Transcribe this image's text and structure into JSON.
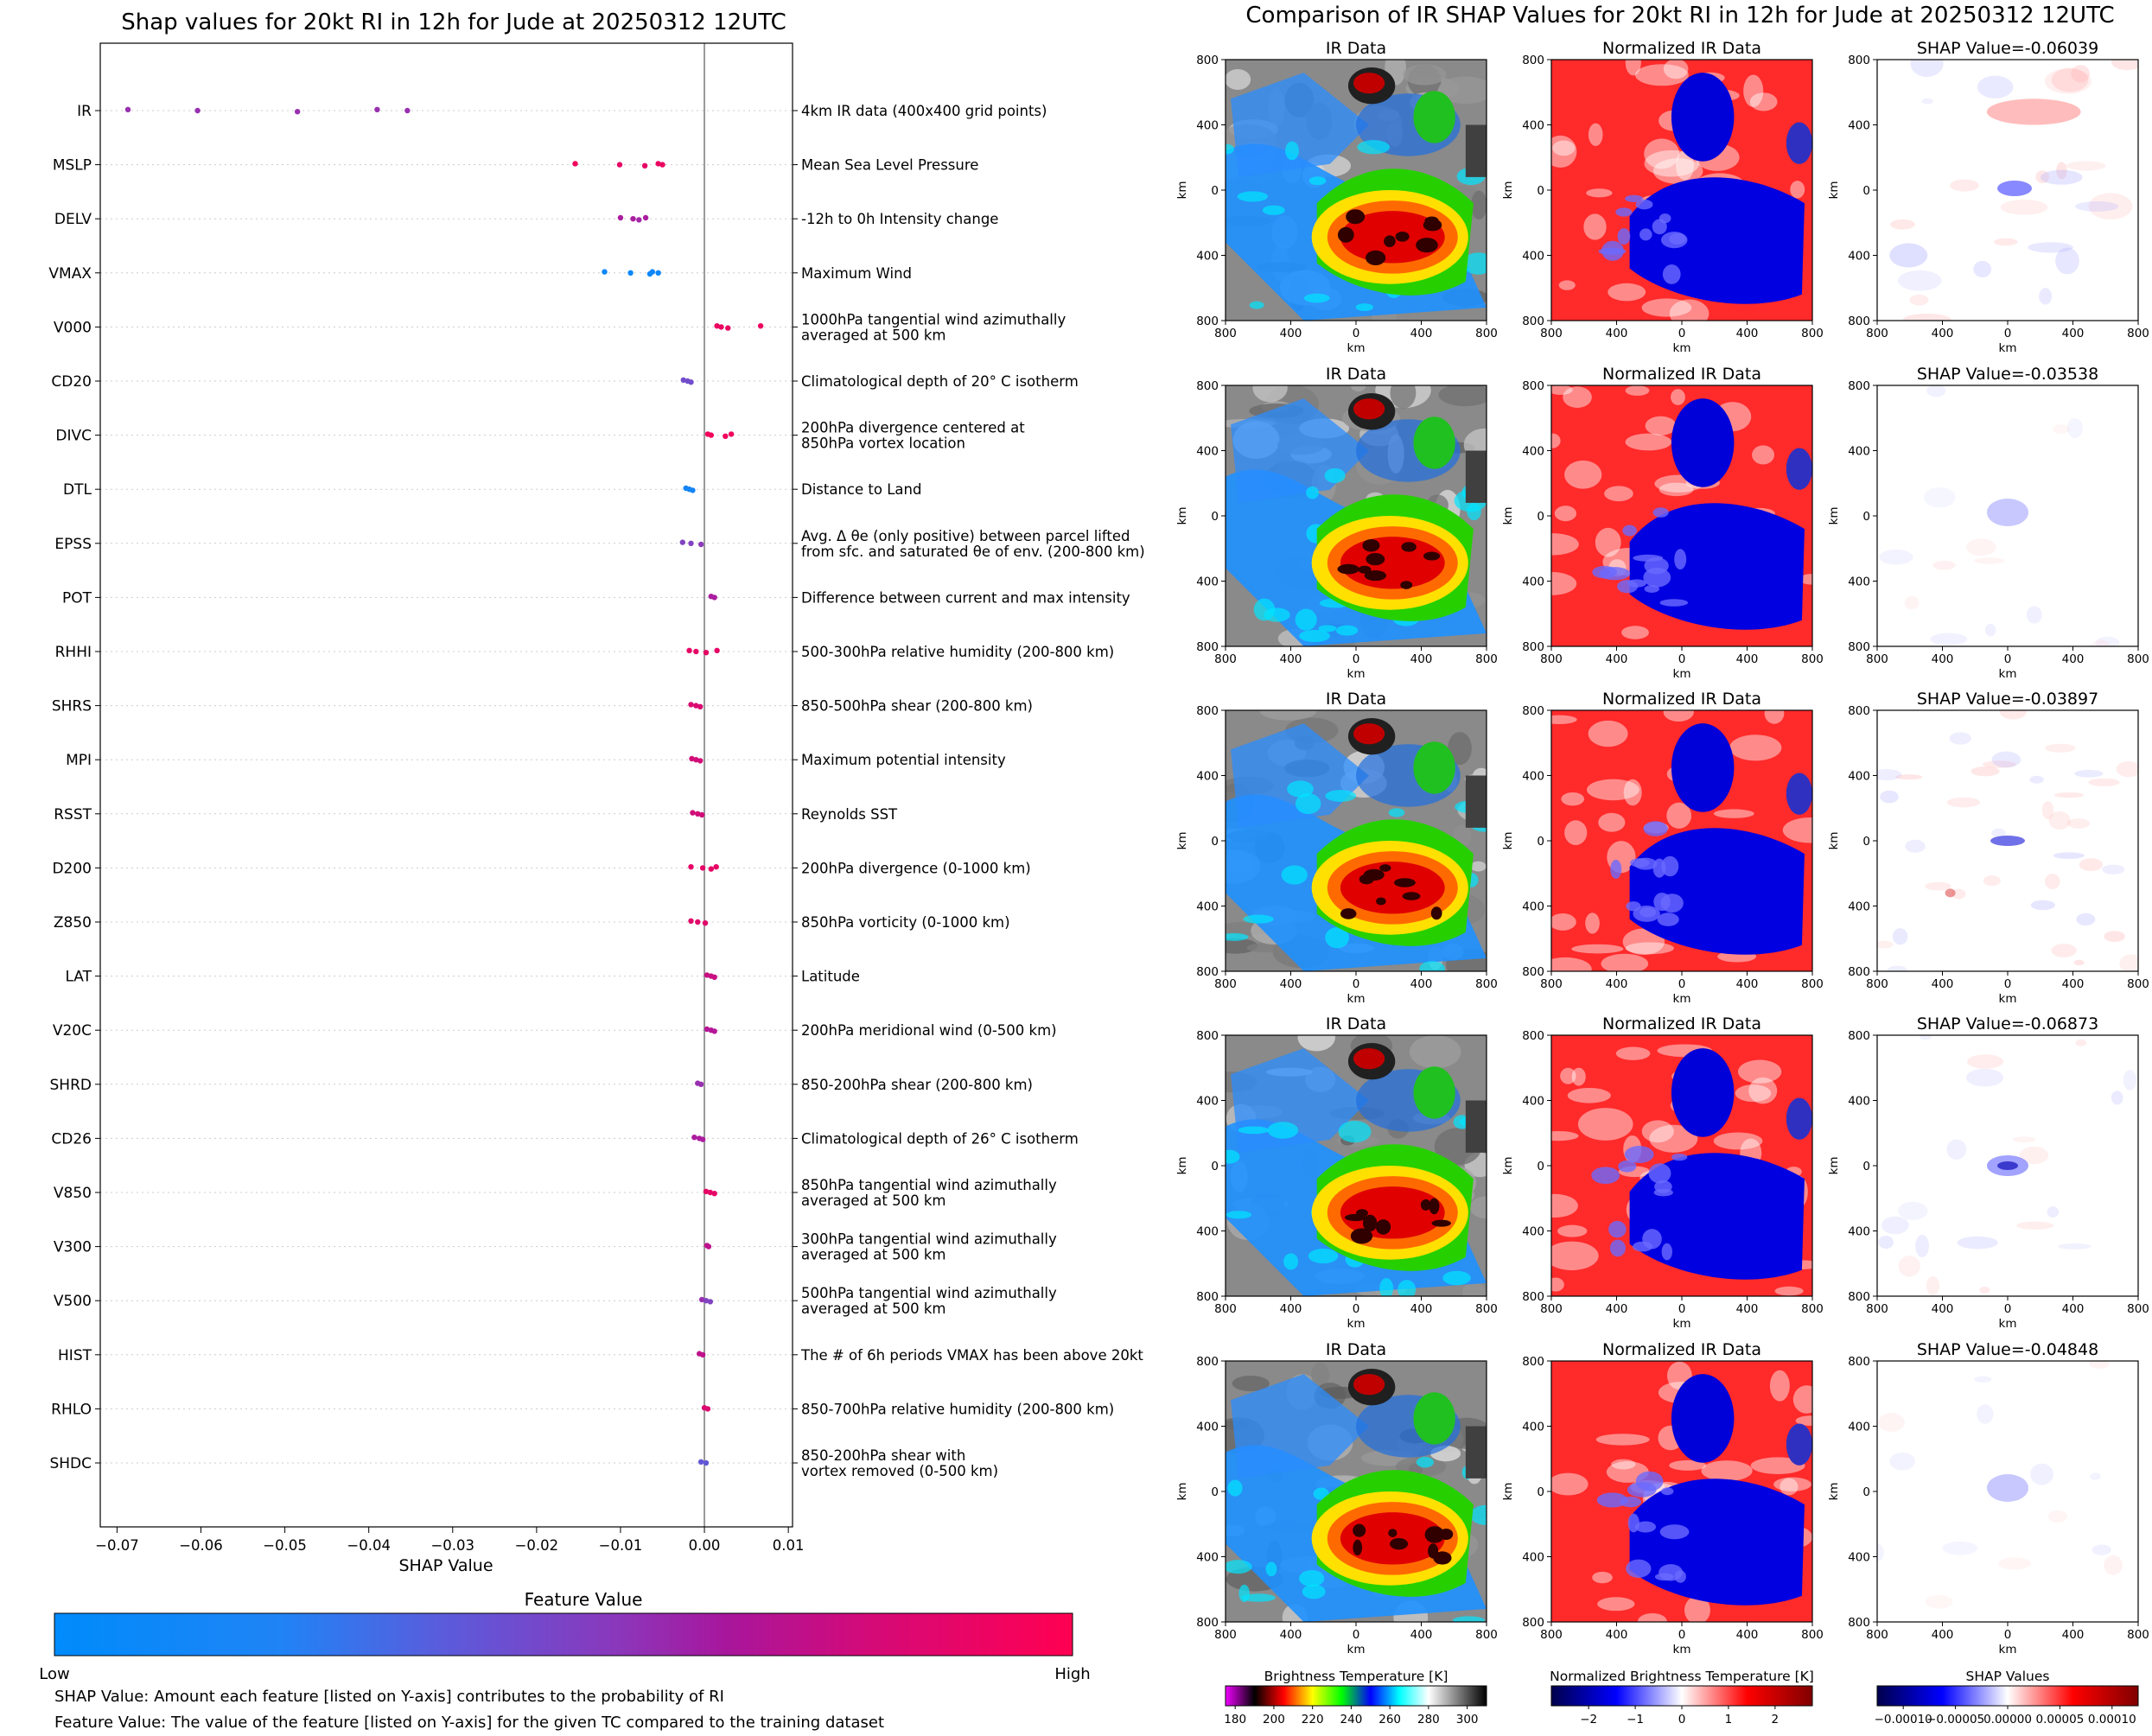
{
  "chart_data": [
    {
      "type": "scatter",
      "title": "Shap values for 20kt RI in 12h for Jude at 20250312 12UTC",
      "xlabel": "SHAP Value",
      "ylabel": "",
      "xlim": [
        -0.072,
        0.0105
      ],
      "x_ticks": [
        "−0.07",
        "−0.06",
        "−0.05",
        "−0.04",
        "−0.03",
        "−0.02",
        "−0.01",
        "0.00",
        "0.01"
      ],
      "x_tick_values": [
        -0.07,
        -0.06,
        -0.05,
        -0.04,
        -0.03,
        -0.02,
        -0.01,
        0.0,
        0.01
      ],
      "grid": "horizontal dotted",
      "features": [
        {
          "name": "IR",
          "description": "4km IR data (400x400 grid points)",
          "points": [
            [
              -0.0687,
              0.5
            ],
            [
              -0.0604,
              0.5
            ],
            [
              -0.0485,
              0.5
            ],
            [
              -0.039,
              0.5
            ],
            [
              -0.0354,
              0.5
            ]
          ]
        },
        {
          "name": "MSLP",
          "description": "Mean Sea Level Pressure",
          "points": [
            [
              -0.0154,
              0.95
            ],
            [
              -0.0101,
              0.9
            ],
            [
              -0.0071,
              0.9
            ],
            [
              -0.0055,
              0.92
            ],
            [
              -0.005,
              0.92
            ]
          ]
        },
        {
          "name": "DELV",
          "description": "-12h to 0h Intensity change",
          "points": [
            [
              -0.01,
              0.6
            ],
            [
              -0.0085,
              0.6
            ],
            [
              -0.0078,
              0.55
            ],
            [
              -0.007,
              0.6
            ]
          ]
        },
        {
          "name": "VMAX",
          "description": "Maximum Wind",
          "points": [
            [
              -0.0119,
              0.05
            ],
            [
              -0.0088,
              0.05
            ],
            [
              -0.0065,
              0.05
            ],
            [
              -0.0062,
              0.05
            ],
            [
              -0.0055,
              0.05
            ]
          ]
        },
        {
          "name": "V000",
          "description": "1000hPa tangential wind azimuthally\naveraged at 500 km",
          "points": [
            [
              0.0015,
              0.92
            ],
            [
              0.002,
              0.92
            ],
            [
              0.0028,
              0.92
            ],
            [
              0.0067,
              0.92
            ]
          ]
        },
        {
          "name": "CD20",
          "description": "Climatological depth of 20° C isotherm",
          "points": [
            [
              -0.0025,
              0.35
            ],
            [
              -0.002,
              0.35
            ],
            [
              -0.0016,
              0.35
            ]
          ]
        },
        {
          "name": "DIVC",
          "description": "200hPa divergence centered at\n850hPa vortex location",
          "points": [
            [
              0.0004,
              0.95
            ],
            [
              0.0008,
              0.95
            ],
            [
              0.0025,
              0.95
            ],
            [
              0.0032,
              0.95
            ]
          ]
        },
        {
          "name": "DTL",
          "description": "Distance to Land",
          "points": [
            [
              -0.0022,
              0.08
            ],
            [
              -0.0018,
              0.08
            ],
            [
              -0.0014,
              0.08
            ]
          ]
        },
        {
          "name": "EPSS",
          "description": "Avg. Δ θe (only positive) between parcel lifted\nfrom sfc. and saturated θe of env. (200-800 km)",
          "points": [
            [
              -0.0026,
              0.4
            ],
            [
              -0.0016,
              0.4
            ],
            [
              -0.0004,
              0.45
            ]
          ]
        },
        {
          "name": "POT",
          "description": "Difference between current and max intensity",
          "points": [
            [
              0.0008,
              0.6
            ],
            [
              0.0012,
              0.6
            ]
          ]
        },
        {
          "name": "RHHI",
          "description": "500-300hPa relative humidity (200-800 km)",
          "points": [
            [
              -0.0018,
              0.9
            ],
            [
              -0.001,
              0.9
            ],
            [
              0.0002,
              0.9
            ],
            [
              0.0015,
              0.9
            ]
          ]
        },
        {
          "name": "SHRS",
          "description": "850-500hPa shear (200-800 km)",
          "points": [
            [
              -0.0016,
              0.85
            ],
            [
              -0.001,
              0.85
            ],
            [
              -0.0005,
              0.85
            ]
          ]
        },
        {
          "name": "MPI",
          "description": "Maximum potential intensity",
          "points": [
            [
              -0.0015,
              0.8
            ],
            [
              -0.001,
              0.8
            ],
            [
              -0.0005,
              0.8
            ]
          ]
        },
        {
          "name": "RSST",
          "description": "Reynolds SST",
          "points": [
            [
              -0.0014,
              0.8
            ],
            [
              -0.0008,
              0.8
            ],
            [
              -0.0003,
              0.8
            ]
          ]
        },
        {
          "name": "D200",
          "description": "200hPa divergence (0-1000 km)",
          "points": [
            [
              -0.0016,
              0.9
            ],
            [
              -0.0002,
              0.9
            ],
            [
              0.0008,
              0.9
            ],
            [
              0.0014,
              0.9
            ]
          ]
        },
        {
          "name": "Z850",
          "description": "850hPa vorticity (0-1000 km)",
          "points": [
            [
              -0.0016,
              0.88
            ],
            [
              -0.0008,
              0.88
            ],
            [
              0.0001,
              0.88
            ]
          ]
        },
        {
          "name": "LAT",
          "description": "Latitude",
          "points": [
            [
              0.0003,
              0.75
            ],
            [
              0.0008,
              0.75
            ],
            [
              0.0012,
              0.75
            ]
          ]
        },
        {
          "name": "V20C",
          "description": "200hPa meridional wind (0-500 km)",
          "points": [
            [
              0.0003,
              0.65
            ],
            [
              0.0008,
              0.65
            ],
            [
              0.0012,
              0.65
            ]
          ]
        },
        {
          "name": "SHRD",
          "description": "850-200hPa shear (200-800 km)",
          "points": [
            [
              -0.0008,
              0.5
            ],
            [
              -0.0004,
              0.5
            ]
          ]
        },
        {
          "name": "CD26",
          "description": "Climatological depth of 26° C isotherm",
          "points": [
            [
              -0.0012,
              0.6
            ],
            [
              -0.0006,
              0.6
            ],
            [
              -0.0002,
              0.6
            ]
          ]
        },
        {
          "name": "V850",
          "description": "850hPa tangential wind azimuthally\naveraged at 500 km",
          "points": [
            [
              0.0002,
              0.9
            ],
            [
              0.0007,
              0.9
            ],
            [
              0.0012,
              0.9
            ]
          ]
        },
        {
          "name": "V300",
          "description": "300hPa tangential wind azimuthally\naveraged at 500 km",
          "points": [
            [
              0.0003,
              0.7
            ],
            [
              0.0005,
              0.7
            ]
          ]
        },
        {
          "name": "V500",
          "description": "500hPa tangential wind azimuthally\naveraged at 500 km",
          "points": [
            [
              -0.0003,
              0.5
            ],
            [
              0.0002,
              0.4
            ],
            [
              0.0007,
              0.4
            ]
          ]
        },
        {
          "name": "HIST",
          "description": "The # of 6h periods VMAX has been above 20kt",
          "points": [
            [
              -0.0006,
              0.7
            ],
            [
              -0.0002,
              0.7
            ]
          ]
        },
        {
          "name": "RHLO",
          "description": "850-700hPa relative humidity (200-800 km)",
          "points": [
            [
              0.0,
              0.85
            ],
            [
              0.0004,
              0.85
            ]
          ]
        },
        {
          "name": "SHDC",
          "description": "850-200hPa shear with\nvortex removed (0-500 km)",
          "points": [
            [
              -0.0004,
              0.3
            ],
            [
              0.0002,
              0.3
            ]
          ]
        }
      ],
      "colorbar": {
        "title": "Feature Value",
        "low_label": "Low",
        "high_label": "High",
        "colors": [
          "#008bfb",
          "#2080f5",
          "#5060e0",
          "#7a48c6",
          "#9830ae",
          "#b0189c",
          "#c81082",
          "#e0086a",
          "#ff0052"
        ]
      }
    },
    {
      "type": "heatmap",
      "title": "Comparison of IR SHAP Values for 20kt RI in 12h for Jude at 20250312 12UTC",
      "axis_label": "km",
      "ticks": [
        "800",
        "400",
        "0",
        "400",
        "800"
      ],
      "column_titles": [
        "IR Data",
        "Normalized IR Data"
      ],
      "rows": [
        {
          "shap_title": "SHAP Value=-0.06039",
          "pattern": "warm-cold-dipole"
        },
        {
          "shap_title": "SHAP Value=-0.03538",
          "pattern": "center"
        },
        {
          "shap_title": "SHAP Value=-0.03897",
          "pattern": "scattered"
        },
        {
          "shap_title": "SHAP Value=-0.06873",
          "pattern": "center-strong"
        },
        {
          "shap_title": "SHAP Value=-0.04848",
          "pattern": "center"
        }
      ],
      "colorbars": [
        {
          "label": "Brightness Temperature [K]",
          "ticks": [
            "180",
            "200",
            "220",
            "240",
            "260",
            "280",
            "300"
          ],
          "values": [
            180,
            200,
            220,
            240,
            260,
            280,
            300
          ],
          "range": [
            175,
            310
          ],
          "colors": [
            "#f000ff",
            "#000000",
            "#ff0000",
            "#ffff00",
            "#00ff00",
            "#0000ff",
            "#00ffff",
            "#ffffff",
            "#808080",
            "#000000"
          ]
        },
        {
          "label": "Normalized Brightness Temperature [K]",
          "ticks": [
            "−2",
            "−1",
            "0",
            "1",
            "2"
          ],
          "values": [
            -2,
            -1,
            0,
            1,
            2
          ],
          "range": [
            -2.8,
            2.8
          ],
          "colors": [
            "#00004c",
            "#0000ff",
            "#ffffff",
            "#ff0000",
            "#800000"
          ]
        },
        {
          "label": "SHAP Values",
          "ticks": [
            "−0.00010",
            "−0.00005",
            "0.00000",
            "0.00005",
            "0.00010"
          ],
          "values": [
            -0.0001,
            -5e-05,
            0,
            5e-05,
            0.0001
          ],
          "range": [
            -0.000125,
            0.000125
          ],
          "colors": [
            "#00004c",
            "#0000ff",
            "#ffffff",
            "#ff0000",
            "#800000"
          ]
        }
      ]
    }
  ],
  "footnotes": {
    "shap": "SHAP Value: Amount each feature [listed on Y-axis] contributes to the probability of RI",
    "feature": "Feature Value: The value of the feature [listed on Y-axis] for the given TC compared to the training dataset"
  }
}
